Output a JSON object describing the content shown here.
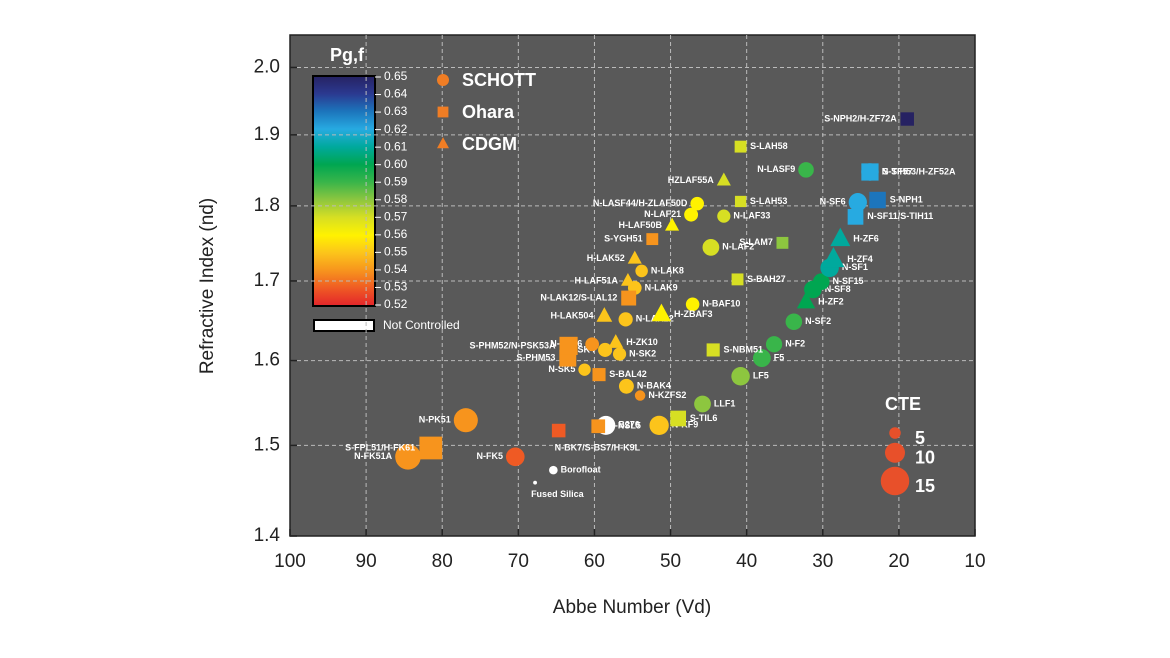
{
  "chart_data": {
    "type": "scatter",
    "x_label": "Abbe Number (Vd)",
    "y_label": "Refractive Index (nd)",
    "xlim": [
      100,
      10
    ],
    "xticks": [
      100,
      90,
      80,
      70,
      60,
      50,
      40,
      30,
      20,
      10
    ],
    "ylim": [
      1.4,
      2.05
    ],
    "yticks": [
      1.4,
      1.5,
      1.6,
      1.7,
      1.8,
      1.9,
      {
        "value": 2,
        "label": "2.0"
      }
    ],
    "ylog": true,
    "grid": true,
    "colorbar": {
      "title": "Pg,f",
      "ticks": [
        0.52,
        0.53,
        0.54,
        0.55,
        0.56,
        0.57,
        0.58,
        0.59,
        0.6,
        0.61,
        0.62,
        0.63,
        0.64,
        0.65
      ],
      "tick_labels": [
        "0.52",
        "0.53",
        "0.54",
        "0.55",
        "0.56",
        "0.57",
        "0.58",
        "0.59",
        "0.60",
        "0.61",
        "0.62",
        "0.63",
        "0.64",
        "0.65"
      ],
      "colors": [
        "#e3242b",
        "#ef5a24",
        "#f7941d",
        "#fcc41b",
        "#fff200",
        "#d7df23",
        "#8dc63f",
        "#39b54a",
        "#00a651",
        "#00a99d",
        "#27aae1",
        "#1c75bc",
        "#2b3990",
        "#262262"
      ],
      "null_label": "Not Controlled",
      "null_color": "#ffffff"
    },
    "size_legend": {
      "title": "CTE",
      "values": [
        5,
        10,
        15
      ],
      "color": "#e8502a"
    },
    "series": [
      {
        "name": "SCHOTT",
        "marker": "circle",
        "color": "#f07d24",
        "labels": [
          "N-FK51A",
          "N-PK51",
          "N-FK5",
          "Borofloat",
          "Fused Silica",
          "B270",
          "N-KF9",
          "N-BAK4",
          "N-KZFS2",
          "N-SK5",
          "N-SK2",
          "N-SK4",
          "N-SK16",
          "N-LAK22",
          "N-LAK9",
          "N-LAK8",
          "N-BAF10",
          "N-LAF21",
          "N-LASF44/H-ZLAF50D",
          "N-LAF33",
          "N-LAF2",
          "N-LASF9",
          "LLF1",
          "LF5",
          "F5",
          "N-F2",
          "N-SF2",
          "N-SF8",
          "N-SF15",
          "N-SF1",
          "N-SF6",
          "N-SF57"
        ],
        "x": [
          84.5,
          76.9,
          70.4,
          65.4,
          67.8,
          58.5,
          51.5,
          55.8,
          54.0,
          61.3,
          56.7,
          58.6,
          60.3,
          55.9,
          54.7,
          53.8,
          47.1,
          47.3,
          46.5,
          43.0,
          44.7,
          32.2,
          45.8,
          40.8,
          38.0,
          36.4,
          33.8,
          31.3,
          30.2,
          29.1,
          25.4,
          23.8
        ],
        "values": [
          1.487,
          1.529,
          1.487,
          1.472,
          1.458,
          1.523,
          1.523,
          1.569,
          1.558,
          1.589,
          1.608,
          1.613,
          1.62,
          1.651,
          1.691,
          1.713,
          1.67,
          1.788,
          1.803,
          1.786,
          1.744,
          1.85,
          1.548,
          1.581,
          1.603,
          1.62,
          1.648,
          1.689,
          1.699,
          1.717,
          1.805,
          1.847
        ],
        "pgf": [
          0.537,
          0.54,
          0.529,
          null,
          null,
          null,
          0.55,
          0.55,
          0.545,
          0.548,
          0.55,
          0.548,
          0.545,
          0.55,
          0.55,
          0.55,
          0.56,
          0.56,
          0.56,
          0.57,
          0.57,
          0.59,
          0.58,
          0.585,
          0.59,
          0.59,
          0.595,
          0.6,
          0.605,
          0.61,
          0.62,
          0.62
        ],
        "cte": [
          13.3,
          12.4,
          9.2,
          3.3,
          0.5,
          9.4,
          9.6,
          7.0,
          4.4,
          5.5,
          6.0,
          6.5,
          6.3,
          6.6,
          6.3,
          5.6,
          6.2,
          6.4,
          6.2,
          6.0,
          8.1,
          7.4,
          8.1,
          9.1,
          8.7,
          7.8,
          8.0,
          8.6,
          8.0,
          9.1,
          9.0,
          8.5
        ]
      },
      {
        "name": "Ohara",
        "marker": "square",
        "color": "#f07d24",
        "labels": [
          "S-FPL51/H-FK61",
          "S-NSL5",
          "S-BAL42",
          "S-PHM53",
          "S-PHM52/N-PSK53A",
          "N-LAK12/S-LAL12",
          "S-YGH51",
          "S-LAH58",
          "S-LAH53",
          "S-LAM7",
          "S-BAH27",
          "S-NBM51",
          "S-TIL6",
          "N-SF11/S-TIH11",
          "S-NPH1",
          "S-TIH53/H-ZF52A",
          "N-BK7/S-BS7/H-K9L",
          "S-NPH2/H-ZF72A"
        ],
        "x": [
          81.5,
          59.5,
          59.4,
          63.5,
          63.4,
          55.5,
          52.4,
          40.8,
          40.8,
          35.3,
          41.2,
          44.4,
          49.0,
          25.7,
          22.8,
          23.8,
          64.7,
          18.9
        ],
        "values": [
          1.497,
          1.522,
          1.583,
          1.603,
          1.618,
          1.678,
          1.755,
          1.883,
          1.806,
          1.75,
          1.702,
          1.613,
          1.531,
          1.785,
          1.808,
          1.847,
          1.517,
          1.923
        ],
        "pgf": [
          0.537,
          0.545,
          0.545,
          0.54,
          0.537,
          0.545,
          0.545,
          0.57,
          0.575,
          0.585,
          0.575,
          0.57,
          0.57,
          0.625,
          0.635,
          0.625,
          0.53,
          0.65
        ],
        "cte": [
          13.1,
          7.2,
          6.8,
          9.3,
          10.1,
          8.0,
          6.0,
          6.0,
          5.6,
          6.0,
          6.0,
          6.8,
          8.5,
          8.5,
          9.0,
          9.5,
          7.1,
          7.0
        ]
      },
      {
        "name": "CDGM",
        "marker": "triangle",
        "color": "#f07d24",
        "labels": [
          "HZLAF55A",
          "H-LAF50B",
          "H-LAK52",
          "H-LAF51A",
          "H-LAK504",
          "H-ZK10",
          "H-ZBAF3",
          "H-ZF4",
          "H-ZF6",
          "H-ZF2"
        ],
        "x": [
          43.0,
          49.8,
          54.7,
          55.6,
          58.7,
          57.2,
          51.2,
          28.6,
          27.7,
          32.2
        ],
        "values": [
          1.835,
          1.773,
          1.729,
          1.7,
          1.655,
          1.622,
          1.657,
          1.728,
          1.755,
          1.673
        ],
        "pgf": [
          0.575,
          0.56,
          0.55,
          0.55,
          0.55,
          0.55,
          0.56,
          0.615,
          0.615,
          0.605
        ],
        "cte": [
          6.5,
          6.5,
          6.5,
          6.4,
          7.5,
          7.0,
          9.5,
          11,
          10,
          9
        ]
      }
    ]
  }
}
